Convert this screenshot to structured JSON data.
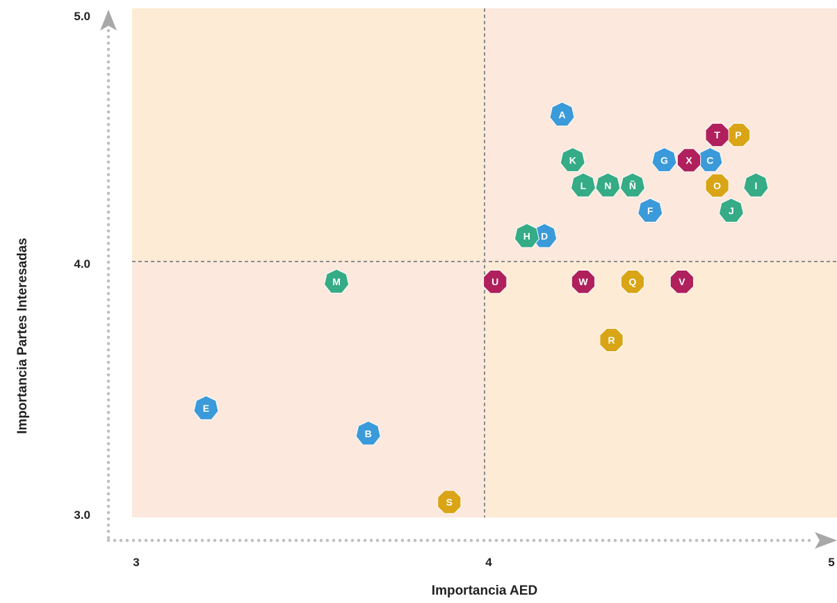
{
  "chart_data": {
    "type": "scatter",
    "title": "",
    "xlabel": "Importancia AED",
    "ylabel": "Importancia Partes Interesadas",
    "xlim": [
      3,
      5
    ],
    "ylim": [
      2.99,
      5.0
    ],
    "x_ticks": [
      {
        "value": 3,
        "label": "3"
      },
      {
        "value": 4,
        "label": "4"
      },
      {
        "value": 5,
        "label": "5"
      }
    ],
    "y_ticks": [
      {
        "value": 3.0,
        "label": "3.0"
      },
      {
        "value": 4.0,
        "label": "4.0"
      },
      {
        "value": 5.0,
        "label": "5.0"
      }
    ],
    "threshold_x": 4,
    "threshold_y": 4,
    "quadrant_colors": {
      "upper_left": "#fdebd5",
      "upper_right": "#fce8dd",
      "lower_left": "#fce8dd",
      "lower_right": "#fdebd5"
    },
    "group_colors": {
      "blue": "#3b9ad9",
      "green": "#35ab86",
      "crimson": "#b0205d",
      "gold": "#d9a516"
    },
    "points": [
      {
        "label": "A",
        "x": 4.22,
        "y": 4.58,
        "group": "blue"
      },
      {
        "label": "B",
        "x": 3.67,
        "y": 3.32,
        "group": "blue"
      },
      {
        "label": "C",
        "x": 4.64,
        "y": 4.4,
        "group": "blue"
      },
      {
        "label": "D",
        "x": 4.17,
        "y": 4.1,
        "group": "blue"
      },
      {
        "label": "E",
        "x": 3.21,
        "y": 3.42,
        "group": "blue"
      },
      {
        "label": "F",
        "x": 4.47,
        "y": 4.2,
        "group": "blue"
      },
      {
        "label": "G",
        "x": 4.51,
        "y": 4.4,
        "group": "blue"
      },
      {
        "label": "H",
        "x": 4.12,
        "y": 4.1,
        "group": "green"
      },
      {
        "label": "I",
        "x": 4.77,
        "y": 4.3,
        "group": "green"
      },
      {
        "label": "J",
        "x": 4.7,
        "y": 4.2,
        "group": "green"
      },
      {
        "label": "K",
        "x": 4.25,
        "y": 4.4,
        "group": "green"
      },
      {
        "label": "L",
        "x": 4.28,
        "y": 4.3,
        "group": "green"
      },
      {
        "label": "M",
        "x": 3.58,
        "y": 3.92,
        "group": "green"
      },
      {
        "label": "N",
        "x": 4.35,
        "y": 4.3,
        "group": "green"
      },
      {
        "label": "Ñ",
        "x": 4.42,
        "y": 4.3,
        "group": "green"
      },
      {
        "label": "O",
        "x": 4.66,
        "y": 4.3,
        "group": "gold"
      },
      {
        "label": "P",
        "x": 4.72,
        "y": 4.5,
        "group": "gold"
      },
      {
        "label": "Q",
        "x": 4.42,
        "y": 3.92,
        "group": "gold"
      },
      {
        "label": "R",
        "x": 4.36,
        "y": 3.69,
        "group": "gold"
      },
      {
        "label": "S",
        "x": 3.9,
        "y": 3.05,
        "group": "gold"
      },
      {
        "label": "T",
        "x": 4.66,
        "y": 4.5,
        "group": "crimson"
      },
      {
        "label": "U",
        "x": 4.03,
        "y": 3.92,
        "group": "crimson"
      },
      {
        "label": "V",
        "x": 4.56,
        "y": 3.92,
        "group": "crimson"
      },
      {
        "label": "W",
        "x": 4.28,
        "y": 3.92,
        "group": "crimson"
      },
      {
        "label": "X",
        "x": 4.58,
        "y": 4.4,
        "group": "crimson"
      }
    ]
  }
}
